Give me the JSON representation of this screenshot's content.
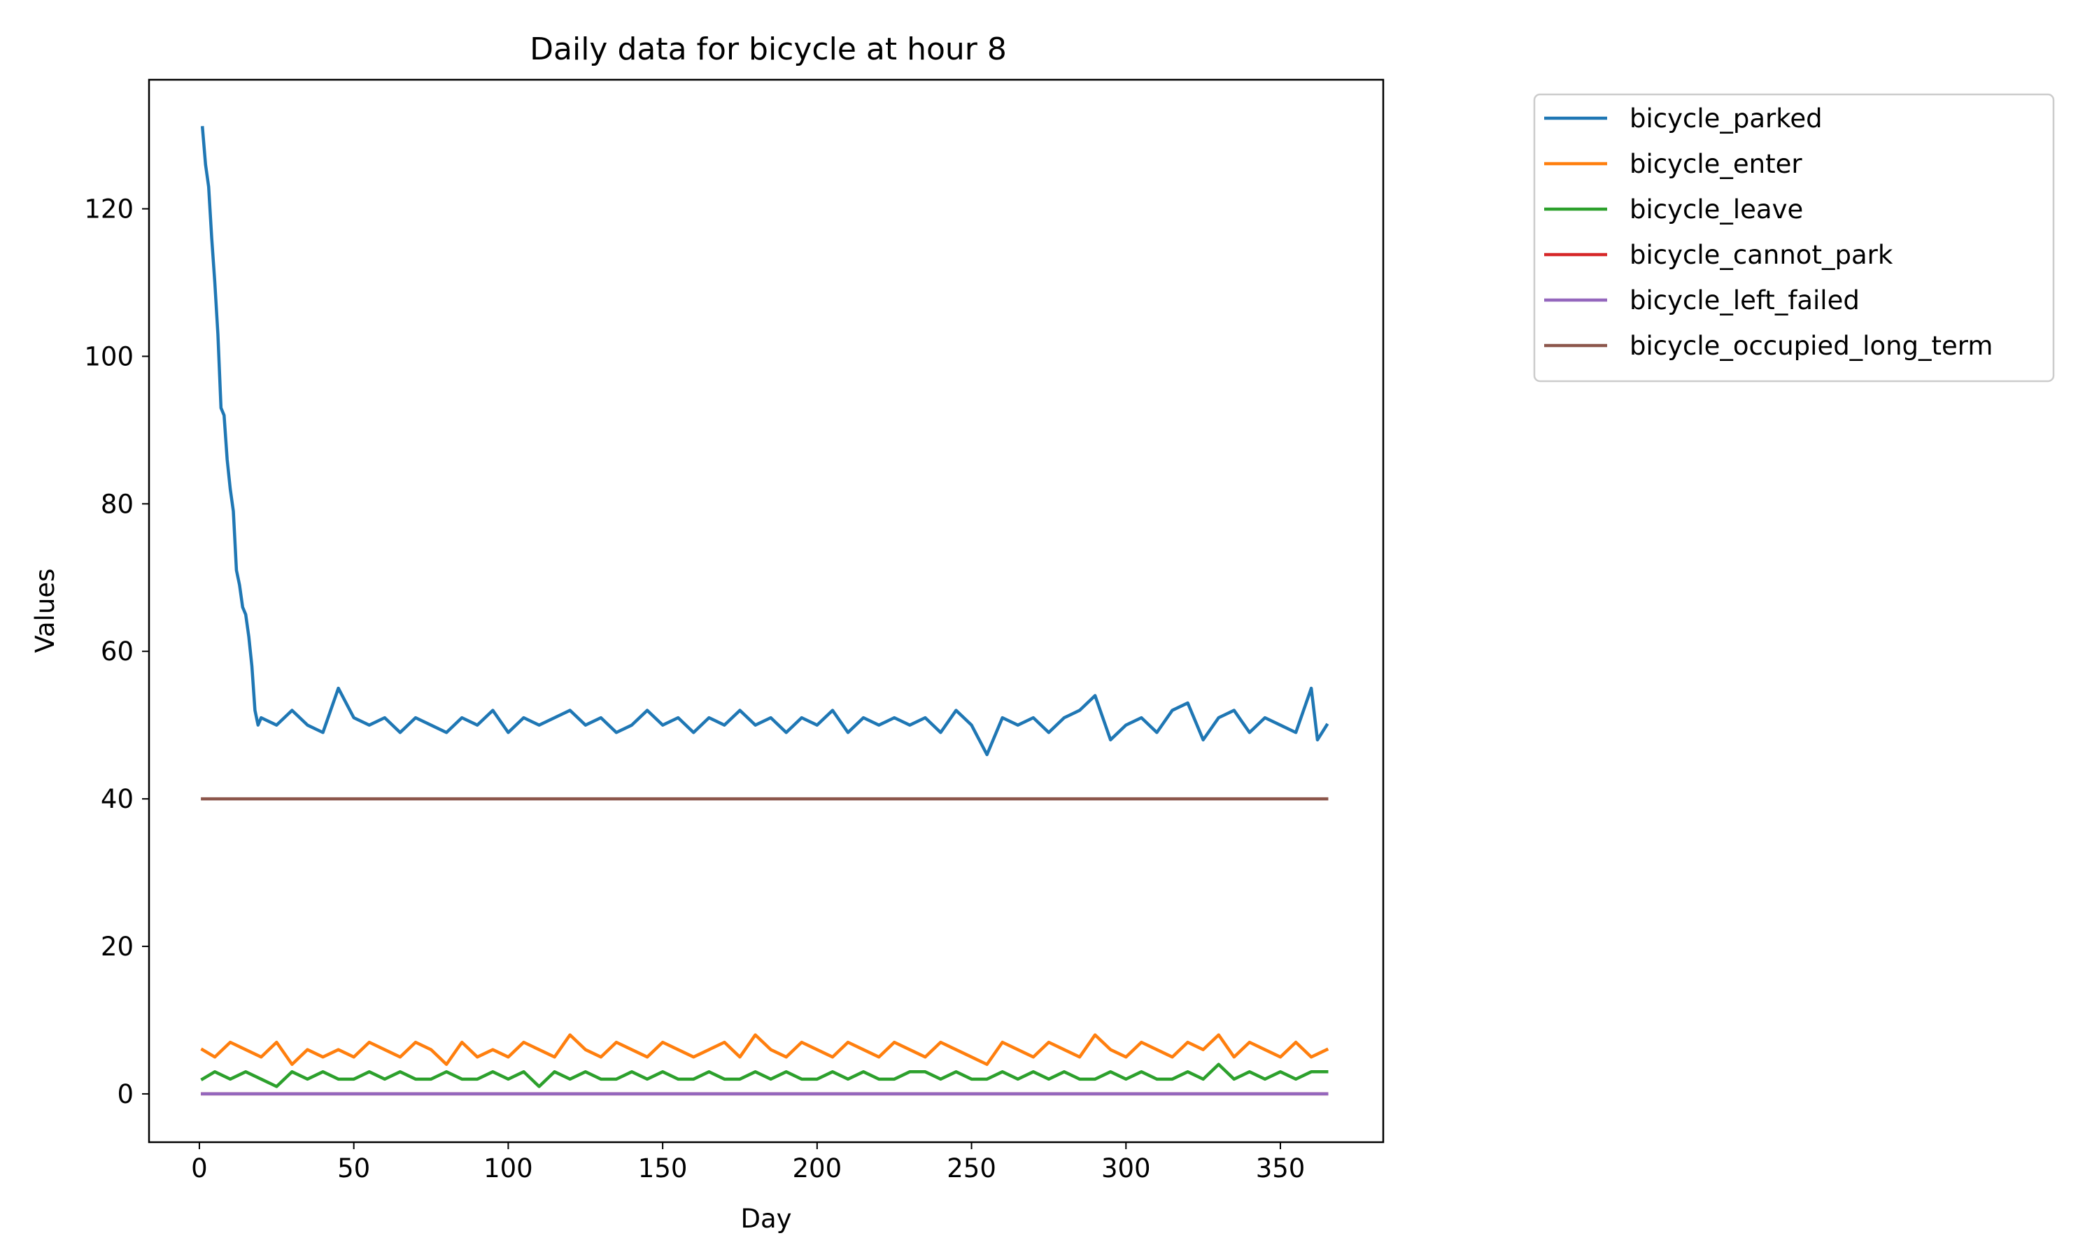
{
  "chart_data": {
    "type": "line",
    "title": "Daily data for bicycle at hour 8",
    "xlabel": "Day",
    "ylabel": "Values",
    "xlim": [
      -16.3,
      383.3
    ],
    "ylim": [
      -6.55,
      137.5
    ],
    "xticks": [
      0,
      50,
      100,
      150,
      200,
      250,
      300,
      350
    ],
    "yticks": [
      0,
      20,
      40,
      60,
      80,
      100,
      120
    ],
    "grid": false,
    "legend": "outside-top-right",
    "series": [
      {
        "name": "bicycle_parked",
        "color": "#1f77b4",
        "x": [
          1,
          2,
          3,
          4,
          5,
          6,
          7,
          8,
          9,
          10,
          11,
          12,
          13,
          14,
          15,
          16,
          17,
          18,
          19,
          20,
          25,
          30,
          35,
          40,
          45,
          50,
          55,
          60,
          65,
          70,
          75,
          80,
          85,
          90,
          95,
          100,
          105,
          110,
          115,
          120,
          125,
          130,
          135,
          140,
          145,
          150,
          155,
          160,
          165,
          170,
          175,
          180,
          185,
          190,
          195,
          200,
          205,
          210,
          215,
          220,
          225,
          230,
          235,
          240,
          245,
          250,
          255,
          260,
          265,
          270,
          275,
          280,
          285,
          290,
          295,
          300,
          305,
          310,
          315,
          320,
          325,
          330,
          335,
          340,
          345,
          350,
          355,
          360,
          362,
          365
        ],
        "y": [
          131,
          126,
          123,
          116,
          110,
          103,
          93,
          92,
          86,
          82,
          79,
          71,
          69,
          66,
          65,
          62,
          58,
          52,
          50,
          51,
          50,
          52,
          50,
          49,
          55,
          51,
          50,
          51,
          49,
          51,
          50,
          49,
          51,
          50,
          52,
          49,
          51,
          50,
          51,
          52,
          50,
          51,
          49,
          50,
          52,
          50,
          51,
          49,
          51,
          50,
          52,
          50,
          51,
          49,
          51,
          50,
          52,
          49,
          51,
          50,
          51,
          50,
          51,
          49,
          52,
          50,
          46,
          51,
          50,
          51,
          49,
          51,
          52,
          54,
          48,
          50,
          51,
          49,
          52,
          53,
          48,
          51,
          52,
          49,
          51,
          50,
          49,
          55,
          48,
          50
        ]
      },
      {
        "name": "bicycle_enter",
        "color": "#ff7f0e",
        "x": [
          1,
          5,
          10,
          15,
          20,
          25,
          30,
          35,
          40,
          45,
          50,
          55,
          60,
          65,
          70,
          75,
          80,
          85,
          90,
          95,
          100,
          105,
          110,
          115,
          120,
          125,
          130,
          135,
          140,
          145,
          150,
          155,
          160,
          165,
          170,
          175,
          180,
          185,
          190,
          195,
          200,
          205,
          210,
          215,
          220,
          225,
          230,
          235,
          240,
          245,
          250,
          255,
          260,
          265,
          270,
          275,
          280,
          285,
          290,
          295,
          300,
          305,
          310,
          315,
          320,
          325,
          330,
          335,
          340,
          345,
          350,
          355,
          360,
          365
        ],
        "y": [
          6,
          5,
          7,
          6,
          5,
          7,
          4,
          6,
          5,
          6,
          5,
          7,
          6,
          5,
          7,
          6,
          4,
          7,
          5,
          6,
          5,
          7,
          6,
          5,
          8,
          6,
          5,
          7,
          6,
          5,
          7,
          6,
          5,
          6,
          7,
          5,
          8,
          6,
          5,
          7,
          6,
          5,
          7,
          6,
          5,
          7,
          6,
          5,
          7,
          6,
          5,
          4,
          7,
          6,
          5,
          7,
          6,
          5,
          8,
          6,
          5,
          7,
          6,
          5,
          7,
          6,
          8,
          5,
          7,
          6,
          5,
          7,
          5,
          6
        ]
      },
      {
        "name": "bicycle_leave",
        "color": "#2ca02c",
        "x": [
          1,
          5,
          10,
          15,
          20,
          25,
          30,
          35,
          40,
          45,
          50,
          55,
          60,
          65,
          70,
          75,
          80,
          85,
          90,
          95,
          100,
          105,
          110,
          115,
          120,
          125,
          130,
          135,
          140,
          145,
          150,
          155,
          160,
          165,
          170,
          175,
          180,
          185,
          190,
          195,
          200,
          205,
          210,
          215,
          220,
          225,
          230,
          235,
          240,
          245,
          250,
          255,
          260,
          265,
          270,
          275,
          280,
          285,
          290,
          295,
          300,
          305,
          310,
          315,
          320,
          325,
          330,
          335,
          340,
          345,
          350,
          355,
          360,
          365
        ],
        "y": [
          2,
          3,
          2,
          3,
          2,
          1,
          3,
          2,
          3,
          2,
          2,
          3,
          2,
          3,
          2,
          2,
          3,
          2,
          2,
          3,
          2,
          3,
          1,
          3,
          2,
          3,
          2,
          2,
          3,
          2,
          3,
          2,
          2,
          3,
          2,
          2,
          3,
          2,
          3,
          2,
          2,
          3,
          2,
          3,
          2,
          2,
          3,
          3,
          2,
          3,
          2,
          2,
          3,
          2,
          3,
          2,
          3,
          2,
          2,
          3,
          2,
          3,
          2,
          2,
          3,
          2,
          4,
          2,
          3,
          2,
          3,
          2,
          3,
          3
        ]
      },
      {
        "name": "bicycle_cannot_park",
        "color": "#d62728",
        "x": [
          1,
          365
        ],
        "y": [
          0,
          0
        ]
      },
      {
        "name": "bicycle_left_failed",
        "color": "#9467bd",
        "x": [
          1,
          365
        ],
        "y": [
          0,
          0
        ]
      },
      {
        "name": "bicycle_occupied_long_term",
        "color": "#8c564b",
        "x": [
          1,
          365
        ],
        "y": [
          40,
          40
        ]
      }
    ]
  }
}
